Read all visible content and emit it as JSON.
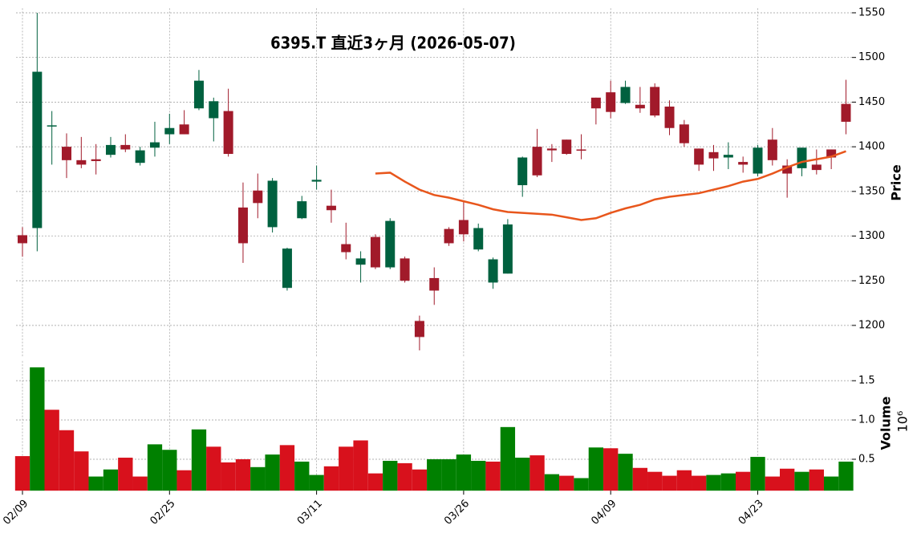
{
  "chart_data": {
    "type": "candlestick",
    "title": "6395.T  直近3ヶ月  (2026-05-07)",
    "y_label": "Price",
    "volume_label": "Volume",
    "volume_offset": "10⁶",
    "categories": [
      "02/09",
      null,
      null,
      null,
      null,
      null,
      null,
      null,
      null,
      null,
      "02/25",
      null,
      null,
      null,
      null,
      null,
      null,
      null,
      null,
      null,
      "03/11",
      null,
      null,
      null,
      null,
      null,
      null,
      null,
      null,
      null,
      "03/26",
      null,
      null,
      null,
      null,
      null,
      null,
      null,
      null,
      null,
      "04/09",
      null,
      null,
      null,
      null,
      null,
      null,
      null,
      null,
      null,
      "04/23",
      null,
      null,
      null,
      null,
      null,
      null
    ],
    "open": [
      1301,
      1309,
      1423,
      1400,
      1385,
      1386,
      1391,
      1402,
      1382,
      1399,
      1414,
      1425,
      1443,
      1432,
      1440,
      1332,
      1351,
      1310,
      1242,
      1320,
      1361,
      1334,
      1291,
      1268,
      1299,
      1265,
      1275,
      1205,
      1253,
      1308,
      1318,
      1285,
      1248,
      1258,
      1357,
      1400,
      1398,
      1408,
      1397,
      1455,
      1461,
      1449,
      1447,
      1467,
      1445,
      1425,
      1398,
      1394,
      1388,
      1383,
      1370,
      1408,
      1379,
      1376,
      1380,
      1397,
      1448
    ],
    "high": [
      1310,
      1550,
      1440,
      1415,
      1411,
      1403,
      1411,
      1414,
      1400,
      1428,
      1437,
      1441,
      1486,
      1455,
      1465,
      1360,
      1370,
      1365,
      1287,
      1345,
      1379,
      1352,
      1315,
      1283,
      1302,
      1320,
      1277,
      1211,
      1265,
      1310,
      1339,
      1314,
      1276,
      1319,
      1389,
      1420,
      1403,
      1408,
      1414,
      1455,
      1474,
      1474,
      1467,
      1471,
      1452,
      1430,
      1398,
      1402,
      1405,
      1389,
      1402,
      1421,
      1386,
      1399,
      1397,
      1397,
      1475
    ],
    "low": [
      1277,
      1283,
      1380,
      1365,
      1376,
      1369,
      1388,
      1394,
      1379,
      1389,
      1403,
      1414,
      1441,
      1406,
      1389,
      1270,
      1320,
      1304,
      1239,
      1319,
      1352,
      1315,
      1274,
      1248,
      1263,
      1263,
      1248,
      1172,
      1223,
      1289,
      1294,
      1283,
      1241,
      1258,
      1344,
      1366,
      1383,
      1391,
      1386,
      1425,
      1432,
      1448,
      1438,
      1433,
      1413,
      1400,
      1373,
      1373,
      1375,
      1371,
      1367,
      1379,
      1343,
      1367,
      1369,
      1375,
      1414
    ],
    "close": [
      1292,
      1484,
      1424,
      1385,
      1380,
      1384,
      1402,
      1397,
      1396,
      1405,
      1421,
      1414,
      1474,
      1451,
      1392,
      1292,
      1337,
      1362,
      1286,
      1339,
      1363,
      1329,
      1282,
      1275,
      1265,
      1317,
      1250,
      1187,
      1239,
      1292,
      1302,
      1309,
      1274,
      1313,
      1388,
      1368,
      1396,
      1392,
      1396,
      1443,
      1439,
      1467,
      1443,
      1435,
      1421,
      1404,
      1380,
      1387,
      1391,
      1380,
      1399,
      1385,
      1370,
      1399,
      1374,
      1388,
      1428
    ],
    "up_color": "#00613f",
    "down_color": "#a11a2a",
    "ma": {
      "color": "#e8561c",
      "values": [
        null,
        null,
        null,
        null,
        null,
        null,
        null,
        null,
        null,
        null,
        null,
        null,
        null,
        null,
        null,
        null,
        null,
        null,
        null,
        null,
        null,
        null,
        null,
        null,
        1370,
        1371,
        1361,
        1352,
        1346,
        1343,
        1339,
        1335,
        1330,
        1327,
        1326,
        1325,
        1324,
        1321,
        1318,
        1320,
        1326,
        1331,
        1335,
        1341,
        1344,
        1346,
        1348,
        1352,
        1356,
        1361,
        1364,
        1370,
        1377,
        1383,
        1386,
        1389,
        1395
      ]
    },
    "volume": [
      0.54,
      1.67,
      1.13,
      0.87,
      0.6,
      0.28,
      0.37,
      0.52,
      0.28,
      0.69,
      0.62,
      0.36,
      0.88,
      0.66,
      0.46,
      0.5,
      0.4,
      0.56,
      0.68,
      0.47,
      0.3,
      0.41,
      0.66,
      0.74,
      0.32,
      0.48,
      0.45,
      0.37,
      0.5,
      0.5,
      0.56,
      0.48,
      0.47,
      0.91,
      0.52,
      0.55,
      0.31,
      0.29,
      0.26,
      0.65,
      0.64,
      0.57,
      0.39,
      0.34,
      0.29,
      0.36,
      0.29,
      0.3,
      0.32,
      0.34,
      0.53,
      0.28,
      0.38,
      0.34,
      0.37,
      0.28,
      0.47
    ],
    "volume_direction": [
      "down",
      "up",
      "down",
      "down",
      "down",
      "up",
      "up",
      "down",
      "down",
      "up",
      "up",
      "down",
      "up",
      "down",
      "down",
      "down",
      "up",
      "up",
      "down",
      "up",
      "up",
      "down",
      "down",
      "down",
      "down",
      "up",
      "down",
      "down",
      "up",
      "up",
      "up",
      "up",
      "down",
      "up",
      "up",
      "down",
      "up",
      "down",
      "up",
      "up",
      "down",
      "up",
      "down",
      "down",
      "down",
      "down",
      "down",
      "up",
      "up",
      "down",
      "up",
      "down",
      "down",
      "up",
      "down",
      "up",
      "up"
    ],
    "volume_up_color": "#008000",
    "volume_down_color": "#d8111c",
    "ylim": [
      1165,
      1555
    ],
    "yticks": [
      1200,
      1250,
      1300,
      1350,
      1400,
      1450,
      1500,
      1550
    ],
    "volume_ylim": [
      0.1,
      1.75
    ],
    "volume_yticks": [
      0.5,
      {
        "value": 1,
        "label": "1.0"
      },
      1.5
    ],
    "grid": true
  }
}
